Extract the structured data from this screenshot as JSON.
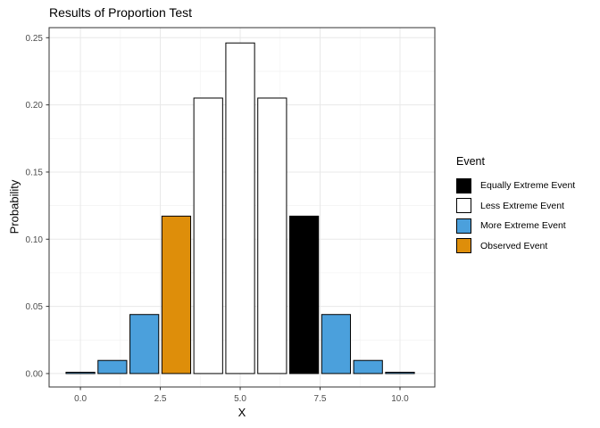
{
  "title": "Results of Proportion Test",
  "axes": {
    "x_label": "X",
    "y_label": "Probability"
  },
  "legend": {
    "title": "Event",
    "entries": [
      {
        "label": "Equally Extreme Event",
        "color": "#000000"
      },
      {
        "label": "Less Extreme Event",
        "color": "#FFFFFF"
      },
      {
        "label": "More Extreme Event",
        "color": "#4BA0DC"
      },
      {
        "label": "Observed Event",
        "color": "#DE8E0A"
      }
    ]
  },
  "chart_data": {
    "type": "bar",
    "title": "Results of Proportion Test",
    "xlabel": "X",
    "ylabel": "Probability",
    "bars": [
      {
        "x": 0,
        "p": 0.00098,
        "event": "More Extreme Event"
      },
      {
        "x": 1,
        "p": 0.00977,
        "event": "More Extreme Event"
      },
      {
        "x": 2,
        "p": 0.04395,
        "event": "More Extreme Event"
      },
      {
        "x": 3,
        "p": 0.11719,
        "event": "Observed Event"
      },
      {
        "x": 4,
        "p": 0.20508,
        "event": "Less Extreme Event"
      },
      {
        "x": 5,
        "p": 0.24609,
        "event": "Less Extreme Event"
      },
      {
        "x": 6,
        "p": 0.20508,
        "event": "Less Extreme Event"
      },
      {
        "x": 7,
        "p": 0.11719,
        "event": "Equally Extreme Event"
      },
      {
        "x": 8,
        "p": 0.04395,
        "event": "More Extreme Event"
      },
      {
        "x": 9,
        "p": 0.00977,
        "event": "More Extreme Event"
      },
      {
        "x": 10,
        "p": 0.00098,
        "event": "More Extreme Event"
      }
    ],
    "bar_width": 0.9,
    "xlim": [
      -0.98,
      11.09
    ],
    "ylim": [
      -0.01,
      0.2575
    ],
    "x_tick_values": [
      0,
      2.5,
      5,
      7.5,
      10
    ],
    "x_tick_labels": [
      "0.0",
      "2.5",
      "5.0",
      "7.5",
      "10.0"
    ],
    "y_tick_values": [
      0,
      0.05,
      0.1,
      0.15,
      0.2,
      0.25
    ],
    "y_tick_labels": [
      "0.00",
      "0.05",
      "0.10",
      "0.15",
      "0.20",
      "0.25"
    ],
    "x_minor_ticks": [
      1.25,
      3.75,
      6.25,
      8.75
    ],
    "y_minor_ticks": [
      0.025,
      0.075,
      0.125,
      0.175,
      0.225
    ],
    "grid": true,
    "legend_position": "right"
  },
  "colors": {
    "background": "#FFFFFF",
    "panel_background": "#FFFFFF",
    "panel_border": "#333333",
    "grid_major": "#E8E8E8",
    "grid_minor": "#F2F2F2",
    "bar_border": "#000000",
    "tick_mark": "#333333",
    "tick_label": "#4D4D4D"
  }
}
